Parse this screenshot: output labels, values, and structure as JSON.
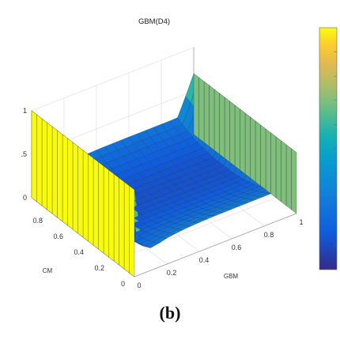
{
  "chart_data": {
    "type": "surface",
    "title": "GBM(D4)",
    "xlabel": "GBM",
    "ylabel": "CM",
    "zlabel": "",
    "x_ticks": [
      "0",
      "0.2",
      "0.4",
      "0.6",
      "0.8",
      "1"
    ],
    "y_ticks": [
      "0",
      "0.2",
      "0.4",
      "0.6",
      "0.8"
    ],
    "z_ticks": [
      "0",
      ".5",
      "1"
    ],
    "xlim": [
      0,
      1
    ],
    "ylim": [
      0,
      1
    ],
    "zlim": [
      0,
      1
    ],
    "colormap": "parula",
    "colorbar": true,
    "x_grid": [
      0,
      0.05,
      0.1,
      0.15,
      0.2,
      0.25,
      0.3,
      0.35,
      0.4,
      0.45,
      0.5,
      0.55,
      0.6,
      0.65,
      0.7,
      0.75,
      0.8,
      0.85,
      0.9,
      0.95,
      1
    ],
    "y_grid": [
      0,
      0.05,
      0.1,
      0.15,
      0.2,
      0.25,
      0.3,
      0.35,
      0.4,
      0.45,
      0.5,
      0.55,
      0.6,
      0.65,
      0.7,
      0.75,
      0.8,
      0.85,
      0.9,
      0.95,
      1
    ],
    "wall_at_x0": 1.0,
    "wall_at_x1": 0.7,
    "ridge_x": 0.98,
    "ridge_height": 0.45,
    "trough_height": 0.12
  },
  "caption": {
    "label": "(b)"
  }
}
